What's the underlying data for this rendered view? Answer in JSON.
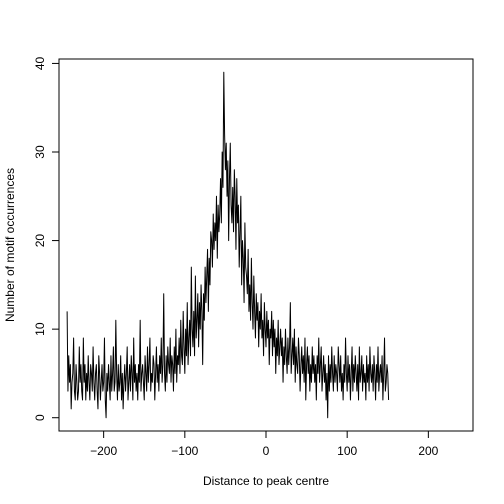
{
  "chart_data": {
    "type": "line",
    "xlabel": "Distance to peak centre",
    "ylabel": "Number of motif occurrences",
    "xlim": [
      -255,
      255
    ],
    "ylim": [
      -1.5,
      40.5
    ],
    "x_ticks": [
      -200,
      -100,
      0,
      100,
      200
    ],
    "x_tick_labels": [
      "−200",
      "−100",
      "0",
      "100",
      "200"
    ],
    "y_ticks": [
      0,
      10,
      20,
      30,
      40
    ],
    "y_tick_labels": [
      "0",
      "10",
      "20",
      "30",
      "40"
    ],
    "grid": false,
    "legend": "none",
    "series": [
      {
        "x_start": -245,
        "x_step": 1,
        "color": "#000000",
        "values": [
          12,
          3,
          7,
          4,
          6,
          1,
          4,
          5,
          9,
          3,
          2,
          6,
          4,
          2,
          3,
          8,
          4,
          6,
          3,
          2,
          9,
          4,
          6,
          2,
          5,
          3,
          7,
          4,
          2,
          6,
          5,
          3,
          8,
          4,
          2,
          5,
          6,
          3,
          1,
          7,
          5,
          2,
          4,
          6,
          3,
          4,
          9,
          2,
          0,
          5,
          3,
          6,
          4,
          2,
          7,
          3,
          5,
          8,
          3,
          4,
          11,
          5,
          2,
          6,
          3,
          4,
          7,
          2,
          5,
          1,
          4,
          6,
          3,
          5,
          8,
          2,
          4,
          6,
          3,
          7,
          5,
          2,
          9,
          4,
          6,
          3,
          5,
          2,
          6,
          4,
          11,
          3,
          5,
          6,
          4,
          2,
          7,
          5,
          3,
          8,
          4,
          6,
          9,
          3,
          5,
          4,
          7,
          6,
          2,
          5,
          8,
          4,
          6,
          3,
          7,
          5,
          9,
          4,
          6,
          14,
          5,
          3,
          7,
          4,
          8,
          6,
          5,
          9,
          4,
          7,
          6,
          3,
          8,
          5,
          10,
          4,
          7,
          6,
          9,
          5,
          11,
          7,
          6,
          12,
          8,
          5,
          10,
          7,
          13,
          6,
          9,
          11,
          7,
          17,
          10,
          8,
          12,
          7,
          16,
          9,
          11,
          14,
          8,
          13,
          10,
          15,
          12,
          6,
          14,
          11,
          17,
          13,
          16,
          19,
          12,
          18,
          15,
          21,
          20,
          17,
          23,
          19,
          22,
          20,
          25,
          18,
          24,
          21,
          23,
          27,
          22,
          30,
          26,
          39,
          32,
          28,
          31,
          25,
          29,
          20,
          27,
          31,
          24,
          22,
          26,
          21,
          28,
          25,
          19,
          27,
          22,
          24,
          17,
          21,
          25,
          15,
          20,
          18,
          13,
          22,
          17,
          16,
          14,
          19,
          12,
          15,
          11,
          18,
          13,
          10,
          16,
          12,
          9,
          14,
          11,
          13,
          8,
          12,
          10,
          14,
          9,
          11,
          7,
          13,
          10,
          8,
          12,
          9,
          11,
          6,
          10,
          9,
          12,
          7,
          11,
          8,
          10,
          5,
          9,
          7,
          11,
          6,
          8,
          10,
          7,
          9,
          4,
          8,
          6,
          10,
          7,
          5,
          9,
          6,
          8,
          13,
          5,
          7,
          9,
          6,
          10,
          4,
          8,
          6,
          5,
          9,
          7,
          3,
          6,
          8,
          5,
          7,
          4,
          9,
          2,
          6,
          8,
          5,
          7,
          3,
          6,
          4,
          8,
          5,
          7,
          4,
          6,
          2,
          7,
          5,
          9,
          4,
          6,
          8,
          3,
          5,
          7,
          4,
          6,
          2,
          5,
          0,
          7,
          3,
          6,
          4,
          8,
          5,
          3,
          7,
          4,
          6,
          5,
          3,
          8,
          6,
          4,
          7,
          3,
          5,
          2,
          6,
          4,
          9,
          5,
          3,
          7,
          4,
          6,
          2,
          5,
          8,
          3,
          6,
          4,
          7,
          5,
          3,
          6,
          2,
          8,
          4,
          5,
          7,
          3,
          6,
          4,
          5,
          2,
          7,
          4,
          6,
          3,
          8,
          5,
          4,
          6,
          3,
          7,
          5,
          2,
          6,
          4,
          8,
          3,
          5,
          6,
          4,
          7,
          2,
          5,
          9,
          3,
          4,
          6,
          5,
          2
        ]
      }
    ]
  }
}
